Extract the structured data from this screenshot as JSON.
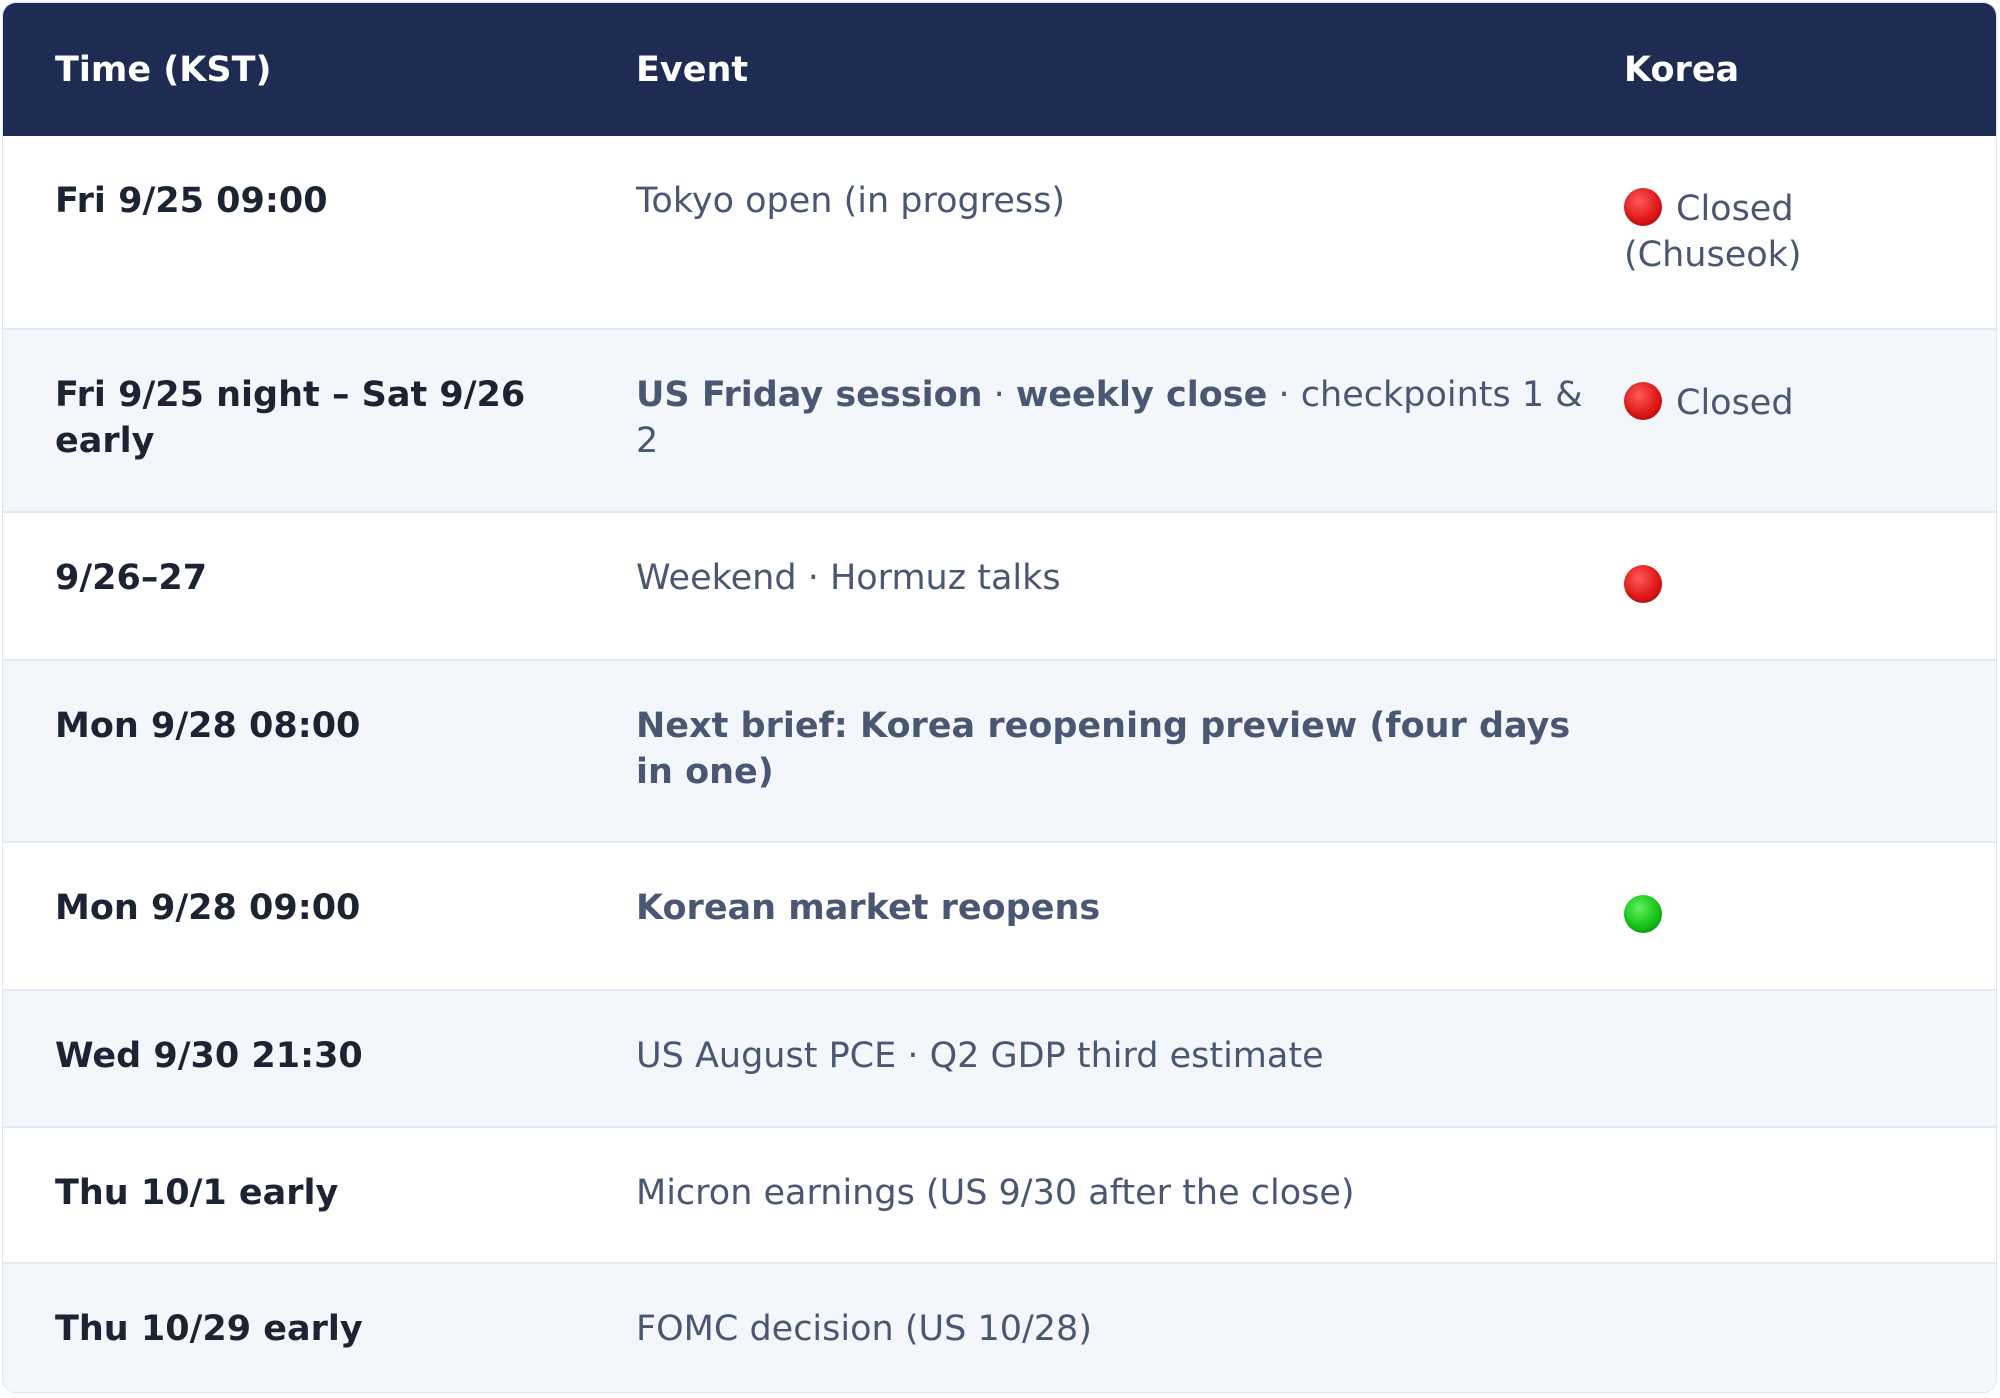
{
  "header": {
    "time": "Time (KST)",
    "event": "Event",
    "korea": "Korea"
  },
  "colors": {
    "header_bg": "#1e2b52",
    "row_alt_bg": "#f3f7fc",
    "closed_dot": "#e01818",
    "open_dot": "#17c21a"
  },
  "rows": [
    {
      "time": "Fri 9/25 09:00",
      "event": "Tokyo open (in progress)",
      "korea_status": "closed",
      "korea_label": "Closed",
      "korea_note": "(Chuseok)"
    },
    {
      "time": "Fri 9/25 night – Sat 9/26 early",
      "event_bold1": "US Friday session",
      "sep1": " · ",
      "event_bold2": "weekly close",
      "sep2": " · ",
      "event_rest": "checkpoints 1 & 2",
      "korea_status": "closed",
      "korea_label": "Closed"
    },
    {
      "time": "9/26–27",
      "event": "Weekend · Hormuz talks",
      "korea_status": "closed"
    },
    {
      "time": "Mon 9/28 08:00",
      "event": "Next brief: Korea reopening preview (four days in one)"
    },
    {
      "time": "Mon 9/28 09:00",
      "event": "Korean market reopens",
      "korea_status": "open"
    },
    {
      "time": "Wed 9/30 21:30",
      "event": "US August PCE · Q2 GDP third estimate"
    },
    {
      "time": "Thu 10/1 early",
      "event": "Micron earnings (US 9/30 after the close)"
    },
    {
      "time": "Thu 10/29 early",
      "event": "FOMC decision (US 10/28)"
    }
  ]
}
